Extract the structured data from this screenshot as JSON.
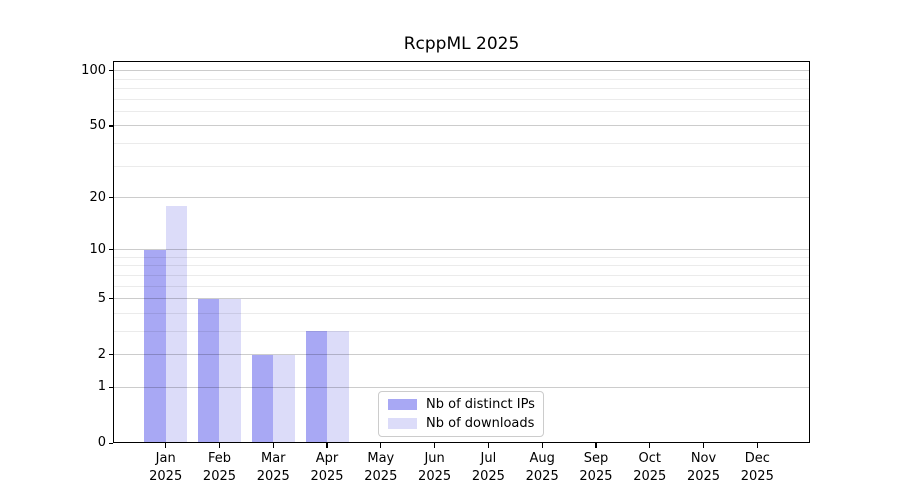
{
  "chart_data": {
    "type": "bar",
    "title": "RcppML 2025",
    "xticklabels": [
      {
        "month": "Jan",
        "year": "2025"
      },
      {
        "month": "Feb",
        "year": "2025"
      },
      {
        "month": "Mar",
        "year": "2025"
      },
      {
        "month": "Apr",
        "year": "2025"
      },
      {
        "month": "May",
        "year": "2025"
      },
      {
        "month": "Jun",
        "year": "2025"
      },
      {
        "month": "Jul",
        "year": "2025"
      },
      {
        "month": "Aug",
        "year": "2025"
      },
      {
        "month": "Sep",
        "year": "2025"
      },
      {
        "month": "Oct",
        "year": "2025"
      },
      {
        "month": "Nov",
        "year": "2025"
      },
      {
        "month": "Dec",
        "year": "2025"
      }
    ],
    "series": [
      {
        "name": "Nb of distinct IPs",
        "slug": "distinct-ips",
        "color": "#a8a8f4",
        "values": [
          10,
          5,
          2,
          3,
          0,
          0,
          0,
          0,
          0,
          0,
          0,
          0
        ]
      },
      {
        "name": "Nb of downloads",
        "slug": "downloads",
        "color": "#dcdcf9",
        "values": [
          18,
          5,
          2,
          3,
          0,
          0,
          0,
          0,
          0,
          0,
          0,
          0
        ]
      }
    ],
    "yticks": [
      0,
      1,
      2,
      5,
      10,
      20,
      50,
      100
    ],
    "minor_gridlines": [
      3,
      4,
      6,
      7,
      8,
      9,
      30,
      40,
      60,
      70,
      80,
      90
    ],
    "scale": "log1p",
    "ylim": [
      0,
      113
    ],
    "grid": true,
    "legend_position": "lower center",
    "colors": {
      "axis": "#000000",
      "grid_major": "rgba(0,0,0,0.20)",
      "grid_minor": "rgba(0,0,0,0.08)",
      "legend_border": "#cccccc",
      "background": "#ffffff"
    }
  }
}
